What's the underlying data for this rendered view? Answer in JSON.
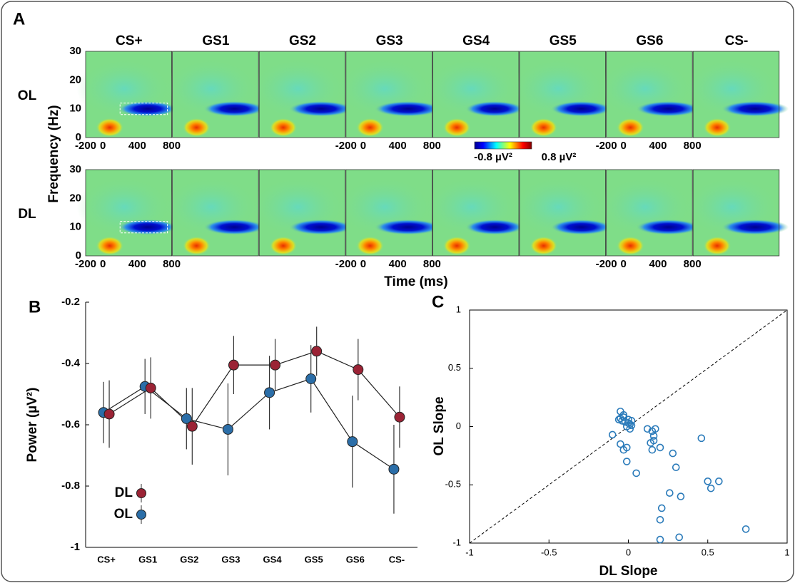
{
  "chart_data": [
    {
      "type": "heatmap",
      "panel_label": "A",
      "columns": [
        "CS+",
        "GS1",
        "GS2",
        "GS3",
        "GS4",
        "GS5",
        "GS6",
        "CS-"
      ],
      "rows": [
        "OL",
        "DL"
      ],
      "xlabel": "Time (ms)",
      "ylabel": "Frequency (Hz)",
      "xlim": [
        -200,
        800
      ],
      "xticks": [
        -200,
        0,
        400,
        800
      ],
      "ylim": [
        0,
        30
      ],
      "yticks": [
        0,
        10,
        20,
        30
      ],
      "colorbar": {
        "lim": [
          -0.8,
          0.8
        ],
        "ticks": [
          {
            "value": -0.8,
            "label": "-0.8 µV²"
          },
          {
            "value": 0.8,
            "label": "0.8 µV²"
          }
        ]
      }
    },
    {
      "type": "line",
      "panel_label": "B",
      "categories": [
        "CS+",
        "GS1",
        "GS2",
        "GS3",
        "GS4",
        "GS5",
        "GS6",
        "CS-"
      ],
      "ylabel": "Power (µV²)",
      "ylim": [
        -1,
        -0.2
      ],
      "yticks": [
        -0.2,
        -0.4,
        -0.6,
        -0.8,
        -1
      ],
      "legend": "lower left",
      "series": [
        {
          "name": "DL",
          "color": "#9b2335",
          "values": [
            -0.565,
            -0.48,
            -0.605,
            -0.405,
            -0.405,
            -0.36,
            -0.42,
            -0.575
          ],
          "errors": [
            0.11,
            0.1,
            0.125,
            0.095,
            0.085,
            0.08,
            0.1,
            0.1
          ]
        },
        {
          "name": "OL",
          "color": "#2b6ea8",
          "values": [
            -0.56,
            -0.475,
            -0.58,
            -0.615,
            -0.495,
            -0.45,
            -0.655,
            -0.745
          ],
          "errors": [
            0.1,
            0.09,
            0.1,
            0.15,
            0.12,
            0.11,
            0.15,
            0.145
          ]
        }
      ]
    },
    {
      "type": "scatter",
      "panel_label": "C",
      "xlabel": "DL Slope",
      "ylabel": "OL Slope",
      "xlim": [
        -1,
        1
      ],
      "ylim": [
        -1,
        1
      ],
      "xticks": [
        -1,
        -0.5,
        0,
        0.5,
        1
      ],
      "yticks": [
        -1,
        -0.5,
        0,
        0.5,
        1
      ],
      "reference_line": "identity",
      "color": "#2b7bba",
      "x": [
        -0.05,
        -0.04,
        -0.03,
        -0.02,
        -0.05,
        -0.03,
        0,
        0.01,
        -0.01,
        0.02,
        -0.06,
        0.01,
        0.02,
        0,
        -0.1,
        -0.05,
        -0.03,
        -0.01,
        -0.01,
        0.05,
        0.12,
        0.15,
        0.17,
        0.16,
        0.14,
        0.16,
        0.15,
        0.2,
        0.28,
        0.3,
        0.26,
        0.33,
        0.46,
        0.5,
        0.52,
        0.57,
        0.21,
        0.2,
        0.2,
        0.32,
        0.74
      ],
      "y": [
        0.07,
        0.05,
        0.08,
        0.04,
        0.13,
        0.1,
        0.06,
        0.02,
        0,
        0.01,
        0.06,
        -0.02,
        0.05,
        0.03,
        -0.07,
        -0.15,
        -0.2,
        -0.18,
        -0.3,
        -0.4,
        -0.02,
        -0.04,
        -0.02,
        -0.08,
        -0.14,
        -0.12,
        -0.2,
        -0.18,
        -0.23,
        -0.35,
        -0.57,
        -0.6,
        -0.1,
        -0.47,
        -0.53,
        -0.47,
        -0.7,
        -0.8,
        -0.97,
        -0.95,
        -0.88
      ]
    }
  ]
}
